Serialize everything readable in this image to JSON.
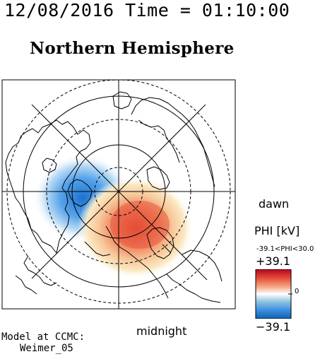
{
  "header": {
    "timestamp": "12/08/2016 Time = 01:10:00",
    "title": "Northern Hemisphere"
  },
  "map": {
    "type": "polar potential map",
    "hemisphere": "northern",
    "labels": {
      "dawn": "dawn",
      "midnight": "midnight"
    },
    "potential_cells": [
      {
        "sign": "negative",
        "sector": "dusk-noon (upper-left)",
        "color": "#3a8ee0"
      },
      {
        "sign": "positive",
        "sector": "dawn-midnight (lower-right)",
        "color": "#e34a33"
      }
    ]
  },
  "colorbar": {
    "title": "PHI [kV]",
    "range_text": "-39.1<PHI<30.0",
    "max_label": "+39.1",
    "min_label": "−39.1",
    "zero_label": "0",
    "colors": [
      "#b40426",
      "#e34a33",
      "#f4a582",
      "#ffffff",
      "#92c5de",
      "#3a8ee0",
      "#1060b0"
    ]
  },
  "footer": {
    "model_label": "Model at CCMC:",
    "model_name": "Weimer_05"
  }
}
